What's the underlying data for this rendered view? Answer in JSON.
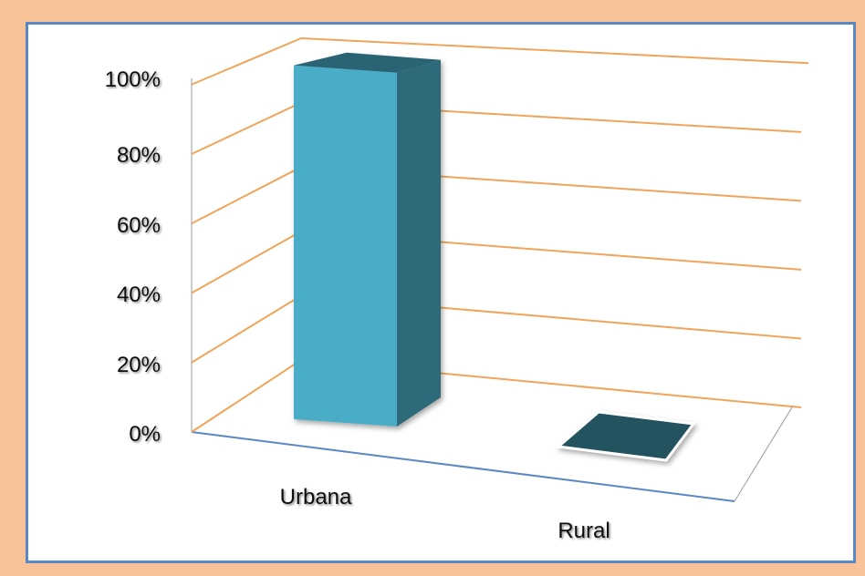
{
  "chart_data": {
    "type": "bar",
    "categories": [
      "Urbana",
      "Rural"
    ],
    "values": [
      100,
      0
    ],
    "yticks": [
      "0%",
      "20%",
      "40%",
      "60%",
      "80%",
      "100%"
    ],
    "ylim": [
      0,
      100
    ],
    "grid": true,
    "colors": {
      "bar_front": "#4aadc8",
      "bar_side": "#2e6b7a",
      "bar_top": "#2c6373",
      "bar_zero": "#24525f",
      "gridline": "#f0a55a",
      "floor_edge": "#5b87c5",
      "wall_edge": "#9a9a9a"
    }
  }
}
